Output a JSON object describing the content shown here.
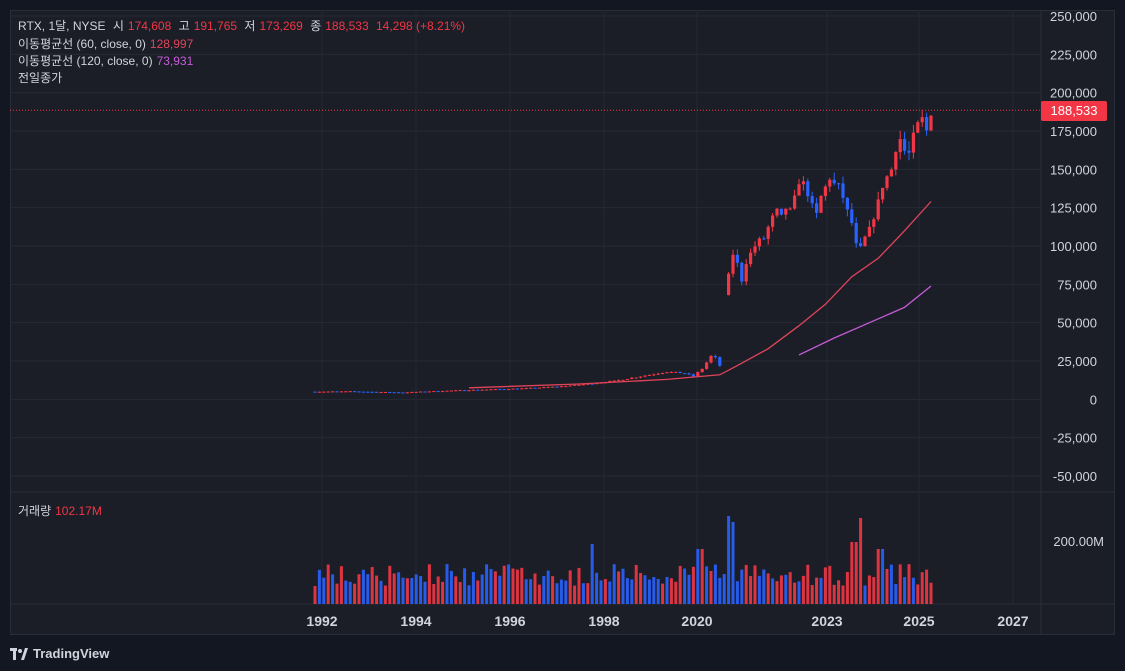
{
  "legend": {
    "symbol": "RTX, 1달, NYSE",
    "open_label": "시",
    "open": "174,608",
    "high_label": "고",
    "high": "191,765",
    "low_label": "저",
    "low": "173,269",
    "close_label": "종",
    "close": "188,533",
    "change": "14,298 (+8.21%)",
    "ma60_label": "이동평균선 (60, close, 0)",
    "ma60_value": "128,997",
    "ma120_label": "이동평균선 (120, close, 0)",
    "ma120_value": "73,931",
    "prev_close_label": "전일종가"
  },
  "volume": {
    "label": "거래량",
    "value": "102.17M"
  },
  "price_tag": "188,533",
  "brand": "TradingView",
  "colors": {
    "up": "#f23645",
    "down": "#2962ff",
    "ma60": "#e0445a",
    "ma120": "#c55bd8",
    "bg": "#1c1e27"
  },
  "chart_data": {
    "type": "candlestick",
    "y_ticks": [
      "250,000",
      "225,000",
      "200,000",
      "175,000",
      "150,000",
      "125,000",
      "100,000",
      "75,000",
      "50,000",
      "25,000",
      "0",
      "-25,000",
      "-50,000"
    ],
    "ylim": [
      -50000,
      250000
    ],
    "x_ticks": [
      "1992",
      "1994",
      "1996",
      "1998",
      "2020",
      "2023",
      "2025",
      "2027"
    ],
    "volume_ticks": [
      "200.00M"
    ],
    "last_close": 188533,
    "segments": [
      {
        "from": 0,
        "to": 92,
        "note": "early segment, low prices"
      },
      {
        "from": 92,
        "to": 143,
        "note": "later segment, higher prices"
      }
    ],
    "close_path": [
      [
        0,
        5000
      ],
      [
        8,
        5200
      ],
      [
        14,
        4800
      ],
      [
        20,
        4500
      ],
      [
        26,
        5200
      ],
      [
        32,
        5800
      ],
      [
        40,
        6500
      ],
      [
        48,
        7200
      ],
      [
        56,
        8500
      ],
      [
        62,
        10000
      ],
      [
        68,
        12000
      ],
      [
        72,
        14000
      ],
      [
        76,
        16000
      ],
      [
        80,
        18000
      ],
      [
        84,
        17000
      ],
      [
        86,
        15000
      ],
      [
        88,
        20000
      ],
      [
        90,
        28000
      ],
      [
        91,
        27000
      ],
      [
        92,
        22000
      ],
      [
        93,
        26000
      ],
      [
        94,
        80000
      ],
      [
        95,
        95000
      ],
      [
        96,
        88000
      ],
      [
        97,
        78000
      ],
      [
        98,
        90000
      ],
      [
        99,
        95000
      ],
      [
        100,
        100000
      ],
      [
        101,
        103000
      ],
      [
        102,
        105000
      ],
      [
        103,
        112000
      ],
      [
        104,
        118000
      ],
      [
        105,
        122000
      ],
      [
        106,
        118000
      ],
      [
        107,
        125000
      ],
      [
        108,
        122000
      ],
      [
        109,
        130000
      ],
      [
        110,
        143000
      ],
      [
        111,
        140000
      ],
      [
        112,
        135000
      ],
      [
        113,
        125000
      ],
      [
        114,
        120000
      ],
      [
        115,
        132000
      ],
      [
        116,
        138000
      ],
      [
        117,
        145000
      ],
      [
        118,
        140000
      ],
      [
        119,
        138000
      ],
      [
        120,
        132000
      ],
      [
        121,
        122000
      ],
      [
        122,
        115000
      ],
      [
        123,
        100000
      ],
      [
        124,
        98000
      ],
      [
        125,
        105000
      ],
      [
        126,
        110000
      ],
      [
        127,
        120000
      ],
      [
        128,
        128000
      ],
      [
        129,
        140000
      ],
      [
        130,
        145000
      ],
      [
        131,
        150000
      ],
      [
        132,
        165000
      ],
      [
        133,
        170000
      ],
      [
        134,
        162000
      ],
      [
        135,
        160000
      ],
      [
        136,
        170000
      ],
      [
        137,
        178000
      ],
      [
        138,
        182000
      ],
      [
        139,
        175000
      ],
      [
        140,
        188533
      ]
    ],
    "ma60_path": [
      [
        35,
        7500
      ],
      [
        60,
        10000
      ],
      [
        80,
        13000
      ],
      [
        92,
        16000
      ],
      [
        96,
        22000
      ],
      [
        103,
        33000
      ],
      [
        110,
        48000
      ],
      [
        116,
        62000
      ],
      [
        122,
        80000
      ],
      [
        128,
        92000
      ],
      [
        134,
        110000
      ],
      [
        140,
        128997
      ]
    ],
    "ma120_path": [
      [
        110,
        29000
      ],
      [
        118,
        40000
      ],
      [
        126,
        50000
      ],
      [
        134,
        60000
      ],
      [
        140,
        73931
      ]
    ],
    "volume_hint": "monthly volume bars, mostly 60M-130M, spikes near 2020 and 2023"
  }
}
